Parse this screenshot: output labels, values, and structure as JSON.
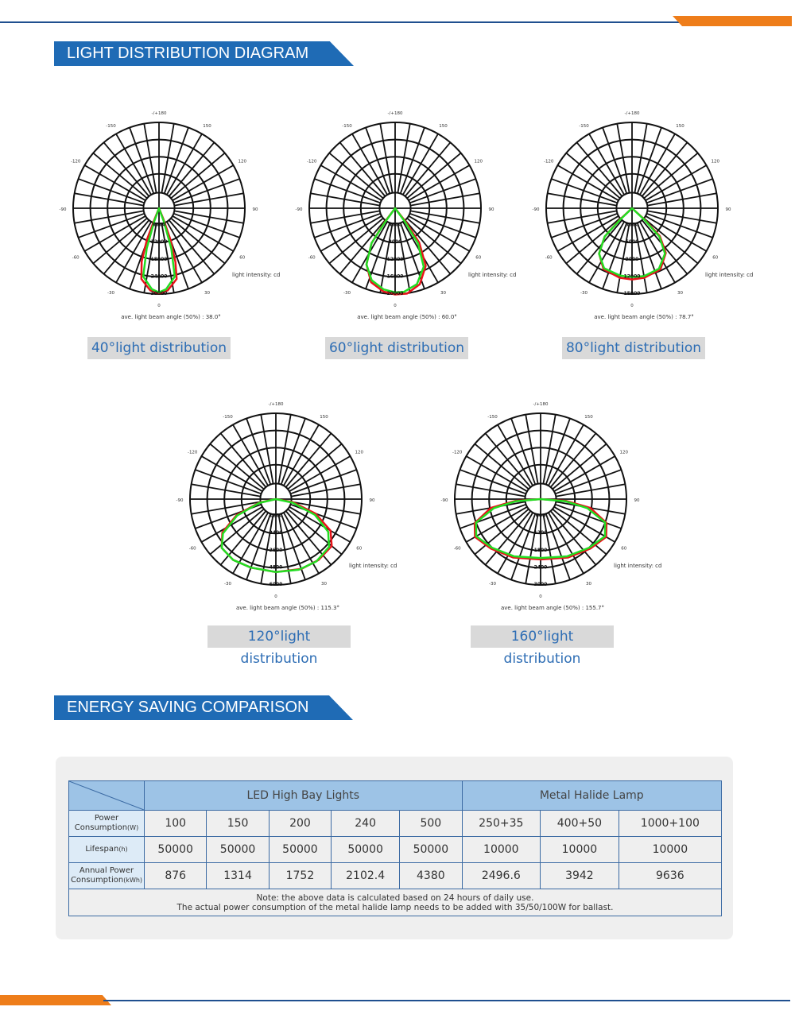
{
  "colors": {
    "brand_blue": "#1f6bb5",
    "accent_orange": "#ee7d1a",
    "curve_red": "#e8141a",
    "curve_green": "#22dd22",
    "table_header": "#9dc3e6",
    "table_rowhead": "#ddebf7"
  },
  "sections": {
    "light_title": "LIGHT DISTRIBUTION DIAGRAM",
    "energy_title": "ENERGY SAVING COMPARISON"
  },
  "polar_common": {
    "angle_labels": [
      "-/+180",
      "-150",
      "150",
      "-120",
      "120",
      "-90",
      "90",
      "-60",
      "60",
      "-30",
      "30",
      "0"
    ],
    "unit_label": "light intensity:  cd"
  },
  "chart_data": [
    {
      "type": "polar",
      "caption": "40°light distribution",
      "beam_text": "ave. light beam angle  (50%)  :  38.0°",
      "ticks": [
        "6000",
        "12000",
        "18000",
        "24000",
        "30000"
      ],
      "rmax": 30000,
      "series": [
        {
          "color": "red",
          "points": [
            [
              -22,
              4000
            ],
            [
              -20,
              12000
            ],
            [
              -17,
              20000
            ],
            [
              -14,
              26000
            ],
            [
              -6,
              29500
            ],
            [
              0,
              30500
            ],
            [
              6,
              29500
            ],
            [
              14,
              26000
            ],
            [
              18,
              20000
            ],
            [
              21,
              12000
            ],
            [
              22,
              4000
            ]
          ]
        },
        {
          "color": "green",
          "points": [
            [
              -20,
              5000
            ],
            [
              -17,
              15000
            ],
            [
              -13,
              25000
            ],
            [
              -5,
              29000
            ],
            [
              0,
              30000
            ],
            [
              5,
              29000
            ],
            [
              13,
              25000
            ],
            [
              17,
              15000
            ],
            [
              20,
              5000
            ]
          ]
        }
      ]
    },
    {
      "type": "polar",
      "caption": "60°light distribution",
      "beam_text": "ave. light beam angle  (50%)  :  60.0°",
      "ticks": [
        "4000",
        "8000",
        "12000",
        "16000",
        "20000"
      ],
      "rmax": 20000,
      "series": [
        {
          "color": "red",
          "points": [
            [
              -38,
              4000
            ],
            [
              -35,
              10000
            ],
            [
              -28,
              15500
            ],
            [
              -18,
              19000
            ],
            [
              -8,
              20500
            ],
            [
              0,
              20500
            ],
            [
              8,
              20000
            ],
            [
              18,
              18500
            ],
            [
              27,
              15000
            ],
            [
              34,
              10000
            ],
            [
              37,
              4000
            ]
          ]
        },
        {
          "color": "green",
          "points": [
            [
              -36,
              4000
            ],
            [
              -33,
              10000
            ],
            [
              -26,
              15500
            ],
            [
              -16,
              18800
            ],
            [
              -6,
              20000
            ],
            [
              0,
              20000
            ],
            [
              8,
              19500
            ],
            [
              18,
              18000
            ],
            [
              27,
              15000
            ],
            [
              34,
              10000
            ],
            [
              36,
              4000
            ]
          ]
        }
      ]
    },
    {
      "type": "polar",
      "caption": "80°light distribution",
      "beam_text": "ave. light beam angle  (50%)  :  78.7°",
      "ticks": [
        "3000",
        "6000",
        "9000",
        "12000",
        "15000"
      ],
      "rmax": 15000,
      "series": [
        {
          "color": "red",
          "points": [
            [
              -48,
              3000
            ],
            [
              -45,
              7000
            ],
            [
              -37,
              10000
            ],
            [
              -25,
              12000
            ],
            [
              -10,
              12600
            ],
            [
              0,
              12700
            ],
            [
              10,
              12600
            ],
            [
              25,
              12000
            ],
            [
              36,
              10000
            ],
            [
              44,
              7000
            ],
            [
              47,
              3000
            ]
          ]
        },
        {
          "color": "green",
          "points": [
            [
              -47,
              3000
            ],
            [
              -44,
              7000
            ],
            [
              -36,
              10000
            ],
            [
              -24,
              11800
            ],
            [
              -10,
              12300
            ],
            [
              0,
              12300
            ],
            [
              10,
              12200
            ],
            [
              25,
              11800
            ],
            [
              36,
              10000
            ],
            [
              44,
              7000
            ],
            [
              46,
              3000
            ]
          ]
        }
      ]
    },
    {
      "type": "polar",
      "caption": "120°light distribution",
      "beam_text": "ave. light beam angle  (50%)  :  115.3°",
      "ticks": [
        "1200",
        "2400",
        "3600",
        "4800",
        "6000"
      ],
      "rmax": 6000,
      "series": [
        {
          "color": "red",
          "points": [
            [
              -80,
              1200
            ],
            [
              -70,
              3000
            ],
            [
              -60,
              4500
            ],
            [
              -50,
              5200
            ],
            [
              -35,
              5300
            ],
            [
              -20,
              5300
            ],
            [
              0,
              5200
            ],
            [
              20,
              5200
            ],
            [
              35,
              5300
            ],
            [
              48,
              5200
            ],
            [
              58,
              4500
            ],
            [
              68,
              3000
            ],
            [
              78,
              1200
            ]
          ]
        },
        {
          "color": "green",
          "points": [
            [
              -78,
              1200
            ],
            [
              -68,
              3000
            ],
            [
              -58,
              4400
            ],
            [
              -48,
              5100
            ],
            [
              -33,
              5300
            ],
            [
              -18,
              5300
            ],
            [
              0,
              5200
            ],
            [
              20,
              5200
            ],
            [
              35,
              5300
            ],
            [
              48,
              5200
            ],
            [
              57,
              4500
            ],
            [
              67,
              3000
            ],
            [
              77,
              1200
            ]
          ]
        }
      ]
    },
    {
      "type": "polar",
      "caption": "160°light distribution",
      "beam_text": "ave. light beam angle  (50%)  :  155.7°",
      "ticks": [
        "600",
        "1200",
        "1800",
        "2400",
        "3000"
      ],
      "rmax": 3000,
      "series": [
        {
          "color": "red",
          "points": [
            [
              -86,
              900
            ],
            [
              -80,
              1800
            ],
            [
              -70,
              2500
            ],
            [
              -60,
              2700
            ],
            [
              -45,
              2500
            ],
            [
              -25,
              2300
            ],
            [
              0,
              2150
            ],
            [
              25,
              2300
            ],
            [
              45,
              2500
            ],
            [
              60,
              2700
            ],
            [
              70,
              2500
            ],
            [
              80,
              1800
            ],
            [
              86,
              900
            ]
          ]
        },
        {
          "color": "green",
          "points": [
            [
              -85,
              900
            ],
            [
              -79,
              1700
            ],
            [
              -70,
              2450
            ],
            [
              -60,
              2650
            ],
            [
              -45,
              2450
            ],
            [
              -25,
              2250
            ],
            [
              0,
              2100
            ],
            [
              25,
              2250
            ],
            [
              45,
              2450
            ],
            [
              60,
              2650
            ],
            [
              70,
              2450
            ],
            [
              79,
              1700
            ],
            [
              85,
              900
            ]
          ]
        }
      ]
    }
  ],
  "table": {
    "groups": [
      "LED High Bay Lights",
      "Metal Halide Lamp"
    ],
    "rows": [
      {
        "label": "Power Consumption",
        "unit": "(W)",
        "values": [
          "100",
          "150",
          "200",
          "240",
          "500",
          "250+35",
          "400+50",
          "1000+100"
        ]
      },
      {
        "label": "Lifespan",
        "unit": "(h)",
        "values": [
          "50000",
          "50000",
          "50000",
          "50000",
          "50000",
          "10000",
          "10000",
          "10000"
        ]
      },
      {
        "label": "Annual Power Consumption",
        "unit": "(kWh)",
        "values": [
          "876",
          "1314",
          "1752",
          "2102.4",
          "4380",
          "2496.6",
          "3942",
          "9636"
        ]
      }
    ],
    "note_line1": "Note: the above data is calculated based on 24 hours of daily use.",
    "note_line2": "The actual power consumption of the metal halide lamp needs to be added with 35/50/100W for ballast."
  }
}
